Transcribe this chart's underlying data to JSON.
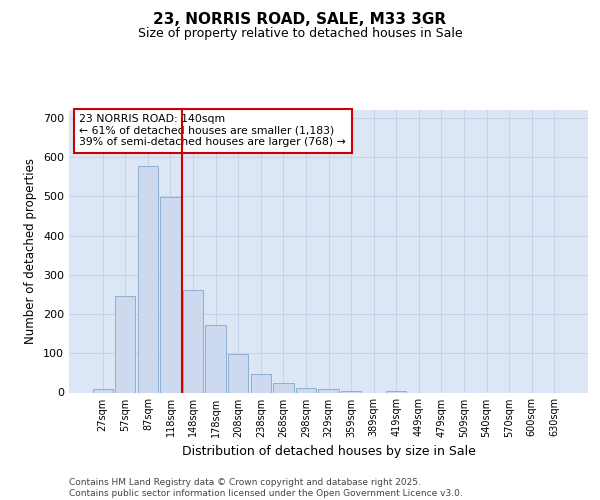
{
  "title1": "23, NORRIS ROAD, SALE, M33 3GR",
  "title2": "Size of property relative to detached houses in Sale",
  "xlabel": "Distribution of detached houses by size in Sale",
  "ylabel": "Number of detached properties",
  "categories": [
    "27sqm",
    "57sqm",
    "87sqm",
    "118sqm",
    "148sqm",
    "178sqm",
    "208sqm",
    "238sqm",
    "268sqm",
    "298sqm",
    "329sqm",
    "359sqm",
    "389sqm",
    "419sqm",
    "449sqm",
    "479sqm",
    "509sqm",
    "540sqm",
    "570sqm",
    "600sqm",
    "630sqm"
  ],
  "bar_heights": [
    10,
    245,
    578,
    498,
    260,
    172,
    97,
    48,
    25,
    12,
    8,
    5,
    0,
    5,
    0,
    0,
    0,
    0,
    0,
    0,
    0
  ],
  "bar_color": "#cdd9ee",
  "bar_edge_color": "#8bafd4",
  "grid_color": "#c0cfe8",
  "bg_color": "#dce6f5",
  "red_line_x": 3.5,
  "red_line_color": "#cc0000",
  "annotation_line1": "23 NORRIS ROAD: 140sqm",
  "annotation_line2": "← 61% of detached houses are smaller (1,183)",
  "annotation_line3": "39% of semi-detached houses are larger (768) →",
  "annotation_box_edgecolor": "#cc0000",
  "footer_text": "Contains HM Land Registry data © Crown copyright and database right 2025.\nContains public sector information licensed under the Open Government Licence v3.0.",
  "ylim": [
    0,
    720
  ],
  "yticks": [
    0,
    100,
    200,
    300,
    400,
    500,
    600,
    700
  ]
}
